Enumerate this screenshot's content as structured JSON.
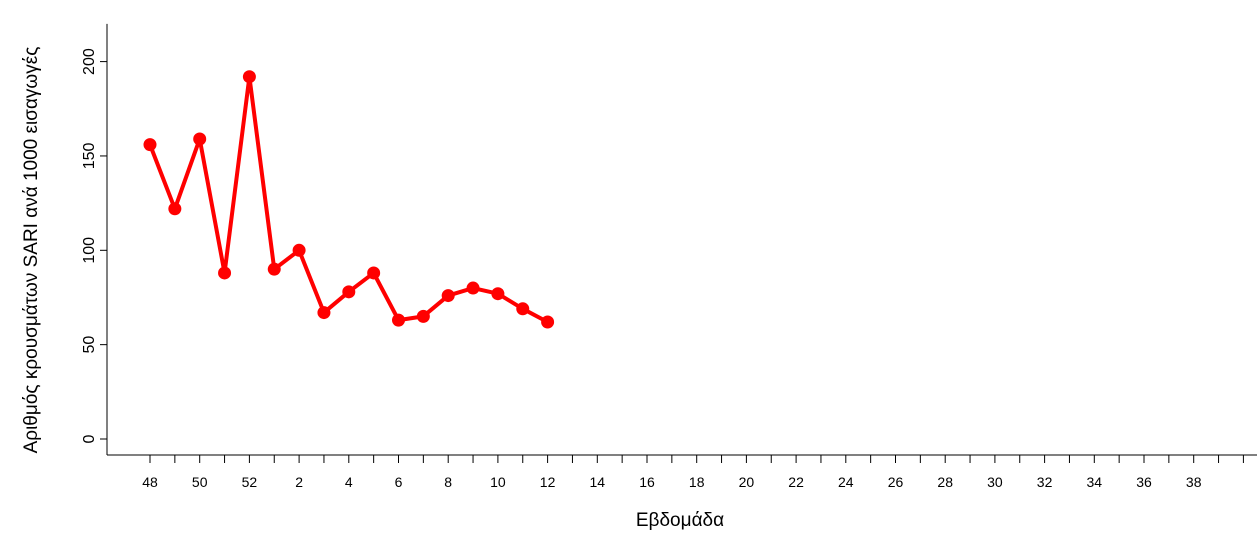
{
  "chart_data": {
    "type": "line",
    "title": "",
    "xlabel": "Εβδομάδα",
    "ylabel": "Αριθμός κρουσμάτων SARI ανά 1000 εισαγωγές",
    "ylim": [
      -5,
      220
    ],
    "yticks": [
      0,
      50,
      100,
      150,
      200
    ],
    "x_categories": [
      "48",
      "49",
      "50",
      "51",
      "52",
      "1",
      "2",
      "3",
      "4",
      "5",
      "6",
      "7",
      "8",
      "9",
      "10",
      "11",
      "12",
      "13",
      "14",
      "15",
      "16",
      "17",
      "18",
      "19",
      "20",
      "21",
      "22",
      "23",
      "24",
      "25",
      "26",
      "27",
      "28",
      "29",
      "30",
      "31",
      "32",
      "33",
      "34",
      "35",
      "36",
      "37",
      "38",
      "39",
      "40"
    ],
    "x_tick_labels": [
      "48",
      "50",
      "52",
      "2",
      "4",
      "6",
      "8",
      "10",
      "12",
      "14",
      "16",
      "18",
      "20",
      "22",
      "24",
      "26",
      "28",
      "30",
      "32",
      "34",
      "36",
      "38"
    ],
    "series": [
      {
        "color": "#ff0000",
        "x": [
          "48",
          "49",
          "50",
          "51",
          "52",
          "1",
          "2",
          "3",
          "4",
          "5",
          "6",
          "7",
          "8",
          "9",
          "10",
          "11",
          "12"
        ],
        "values": [
          156,
          122,
          159,
          88,
          192,
          90,
          100,
          67,
          78,
          88,
          63,
          65,
          76,
          80,
          77,
          69,
          62
        ]
      }
    ],
    "grid": false,
    "legend": "none"
  }
}
